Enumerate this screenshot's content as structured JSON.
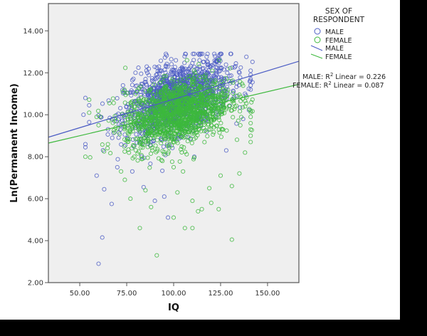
{
  "chart_data": {
    "type": "scatter",
    "title": "",
    "xlabel": "IQ",
    "ylabel": "Ln(Permanent Income)",
    "xlim": [
      33.3,
      166.7
    ],
    "ylim": [
      2.0,
      15.3
    ],
    "x_ticks": [
      50,
      75,
      100,
      125,
      150
    ],
    "x_tick_labels": [
      "50.00",
      "75.00",
      "100.00",
      "125.00",
      "150.00"
    ],
    "y_ticks": [
      2,
      4,
      6,
      8,
      10,
      12,
      14
    ],
    "y_tick_labels": [
      "2.00",
      "4.00",
      "6.00",
      "8.00",
      "10.00",
      "12.00",
      "14.00"
    ],
    "grid": false,
    "legend": {
      "title_line1": "SEX OF",
      "title_line2": "RESPONDENT",
      "position": "right",
      "entries": [
        {
          "label": "MALE",
          "kind": "marker",
          "color": "#4b5cc4"
        },
        {
          "label": "FEMALE",
          "kind": "marker",
          "color": "#3cb83c"
        },
        {
          "label": "MALE",
          "kind": "line",
          "color": "#4b5cc4"
        },
        {
          "label": "FEMALE",
          "kind": "line",
          "color": "#3cb83c"
        }
      ]
    },
    "annotations": [
      {
        "text_prefix": "MALE: R",
        "sup": "2",
        "text_suffix": " Linear = 0.226"
      },
      {
        "text_prefix": "FEMALE: R",
        "sup": "2",
        "text_suffix": " Linear = 0.087"
      }
    ],
    "series": [
      {
        "name": "MALE",
        "color": "#4b5cc4",
        "fit_line": {
          "x": [
            33.3,
            166.7
          ],
          "y": [
            8.93,
            12.55
          ]
        },
        "r2": 0.226,
        "outliers": [
          [
            60,
            2.9
          ],
          [
            62,
            4.15
          ],
          [
            53,
            10.8
          ],
          [
            52,
            10.0
          ],
          [
            53,
            8.6
          ],
          [
            53,
            8.45
          ],
          [
            59,
            7.1
          ],
          [
            63,
            6.45
          ],
          [
            67,
            5.75
          ],
          [
            78,
            7.3
          ],
          [
            84,
            6.55
          ],
          [
            90,
            5.9
          ],
          [
            97,
            5.1
          ],
          [
            111,
            8.0
          ],
          [
            128,
            8.3
          ],
          [
            70,
            7.5
          ],
          [
            95,
            6.1
          ],
          [
            73,
            11.4
          ],
          [
            78,
            11.65
          ],
          [
            86,
            12.0
          ],
          [
            91,
            12.25
          ],
          [
            96,
            12.3
          ],
          [
            141,
            12.1
          ],
          [
            141,
            11.9
          ],
          [
            141,
            11.7
          ],
          [
            141,
            11.4
          ],
          [
            141,
            11.2
          ],
          [
            122,
            12.8
          ],
          [
            138,
            11.0
          ],
          [
            137,
            9.8
          ]
        ]
      },
      {
        "name": "FEMALE",
        "color": "#3cb83c",
        "fit_line": {
          "x": [
            33.3,
            166.7
          ],
          "y": [
            8.65,
            11.45
          ]
        },
        "r2": 0.087,
        "outliers": [
          [
            53,
            8.0
          ],
          [
            55,
            10.1
          ],
          [
            59,
            9.9
          ],
          [
            74,
            6.9
          ],
          [
            82,
            4.6
          ],
          [
            91,
            3.3
          ],
          [
            100,
            5.1
          ],
          [
            106,
            4.6
          ],
          [
            110,
            4.6
          ],
          [
            113,
            5.4
          ],
          [
            120,
            5.8
          ],
          [
            124,
            5.5
          ],
          [
            131,
            4.05
          ],
          [
            131,
            6.6
          ],
          [
            119,
            6.5
          ],
          [
            102,
            6.3
          ],
          [
            88,
            5.6
          ],
          [
            85,
            6.4
          ],
          [
            77,
            6.0
          ],
          [
            72,
            7.3
          ],
          [
            94,
            7.8
          ],
          [
            100,
            7.5
          ],
          [
            105,
            7.3
          ],
          [
            125,
            7.1
          ],
          [
            135,
            7.2
          ],
          [
            138,
            8.2
          ],
          [
            141,
            8.7
          ],
          [
            141,
            9.0
          ],
          [
            141,
            9.3
          ],
          [
            141,
            9.6
          ],
          [
            141,
            9.9
          ],
          [
            141,
            10.2
          ],
          [
            65,
            8.6
          ],
          [
            60,
            9.5
          ],
          [
            110,
            5.9
          ],
          [
            115,
            5.5
          ]
        ]
      }
    ],
    "cloud": {
      "center_x": 102,
      "center_y": 10.4,
      "sd_x": 14,
      "sd_y": 0.85,
      "n_male": 1400,
      "n_female": 1400
    }
  },
  "colors": {
    "plot_background": "#efefef",
    "axis": "#555555",
    "male": "#4b5cc4",
    "female": "#3cb83c"
  }
}
